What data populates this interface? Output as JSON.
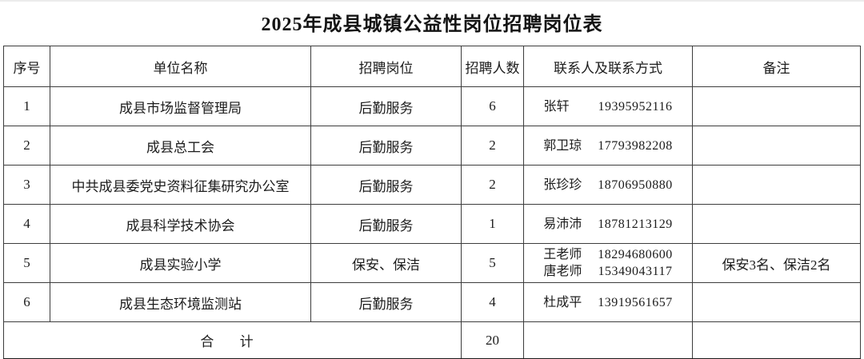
{
  "title": "2025年成县城镇公益性岗位招聘岗位表",
  "table": {
    "headers": [
      "序号",
      "单位名称",
      "招聘岗位",
      "招聘人数",
      "联系人及联系方式",
      "备注"
    ],
    "rows": [
      {
        "no": "1",
        "unit": "成县市场监督管理局",
        "position": "后勤服务",
        "count": "6",
        "contacts": [
          {
            "name": "张轩",
            "phone": "19395952116"
          }
        ],
        "note": ""
      },
      {
        "no": "2",
        "unit": "成县总工会",
        "position": "后勤服务",
        "count": "2",
        "contacts": [
          {
            "name": "郭卫琼",
            "phone": "17793982208"
          }
        ],
        "note": ""
      },
      {
        "no": "3",
        "unit": "中共成县委党史资料征集研究办公室",
        "position": "后勤服务",
        "count": "2",
        "contacts": [
          {
            "name": "张珍珍",
            "phone": "18706950880"
          }
        ],
        "note": ""
      },
      {
        "no": "4",
        "unit": "成县科学技术协会",
        "position": "后勤服务",
        "count": "1",
        "contacts": [
          {
            "name": "易沛沛",
            "phone": "18781213129"
          }
        ],
        "note": ""
      },
      {
        "no": "5",
        "unit": "成县实验小学",
        "position": "保安、保洁",
        "count": "5",
        "contacts": [
          {
            "name": "王老师",
            "phone": "18294680600"
          },
          {
            "name": "唐老师",
            "phone": "15349043117"
          }
        ],
        "note": "保安3名、保洁2名"
      },
      {
        "no": "6",
        "unit": "成县生态环境监测站",
        "position": "后勤服务",
        "count": "4",
        "contacts": [
          {
            "name": "杜成平",
            "phone": "13919561657"
          }
        ],
        "note": ""
      }
    ],
    "total_row": {
      "label": "合  计",
      "count": "20",
      "contact": "",
      "note": ""
    }
  },
  "colors": {
    "border": "#3d3d3d",
    "text": "#1c1c1c",
    "background": "#ffffff"
  }
}
